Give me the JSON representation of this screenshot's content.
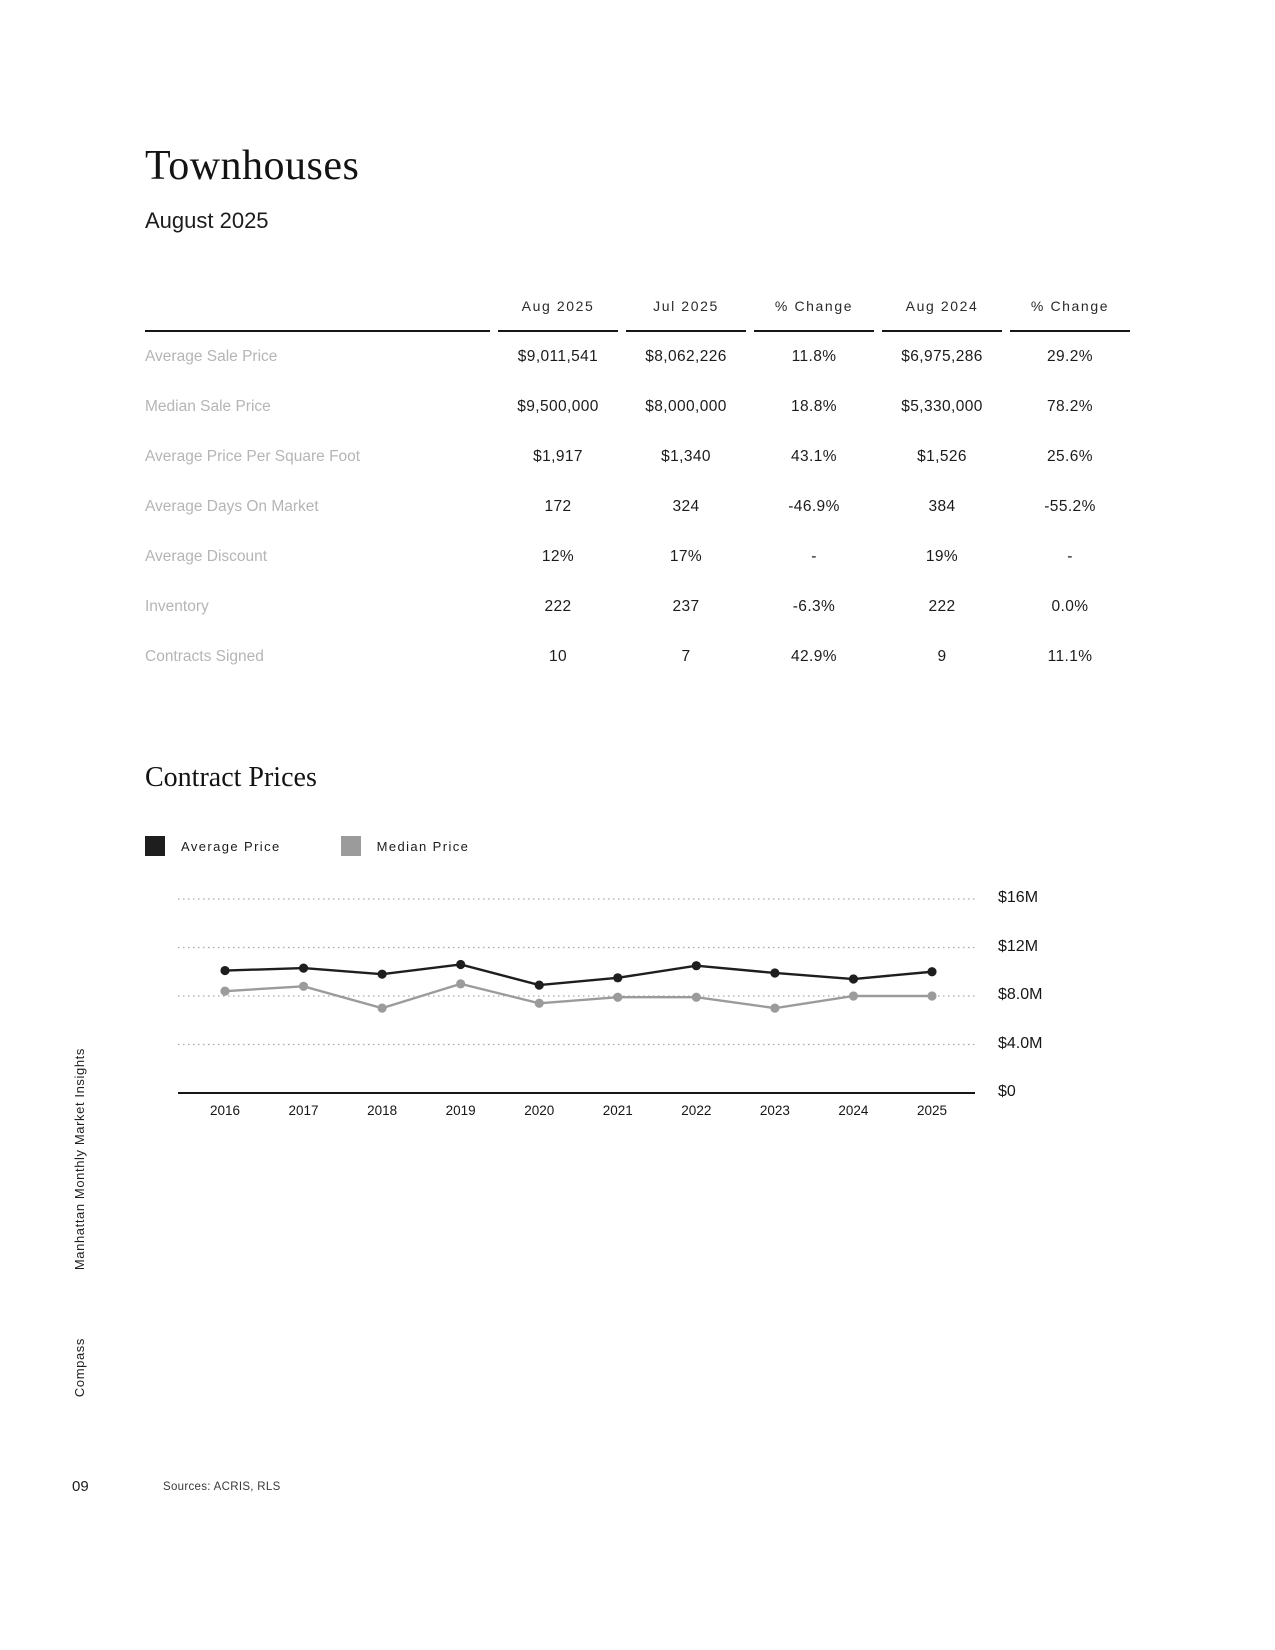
{
  "page": {
    "title": "Townhouses",
    "subtitle": "August 2025",
    "page_number": "09",
    "sources": "Sources: ACRIS, RLS",
    "sidebar_top": "Manhattan Monthly Market Insights",
    "sidebar_bottom": "Compass"
  },
  "table": {
    "columns": [
      "Aug 2025",
      "Jul 2025",
      "% Change",
      "Aug 2024",
      "% Change"
    ],
    "rows": [
      {
        "label": "Average Sale Price",
        "values": [
          "$9,011,541",
          "$8,062,226",
          "11.8%",
          "$6,975,286",
          "29.2%"
        ]
      },
      {
        "label": "Median Sale Price",
        "values": [
          "$9,500,000",
          "$8,000,000",
          "18.8%",
          "$5,330,000",
          "78.2%"
        ]
      },
      {
        "label": "Average Price Per Square Foot",
        "values": [
          "$1,917",
          "$1,340",
          "43.1%",
          "$1,526",
          "25.6%"
        ]
      },
      {
        "label": "Average Days On Market",
        "values": [
          "172",
          "324",
          "-46.9%",
          "384",
          "-55.2%"
        ]
      },
      {
        "label": "Average Discount",
        "values": [
          "12%",
          "17%",
          "-",
          "19%",
          "-"
        ]
      },
      {
        "label": "Inventory",
        "values": [
          "222",
          "237",
          "-6.3%",
          "222",
          "0.0%"
        ]
      },
      {
        "label": "Contracts Signed",
        "values": [
          "10",
          "7",
          "42.9%",
          "9",
          "11.1%"
        ]
      }
    ]
  },
  "section": {
    "title": "Contract Prices"
  },
  "chart_data": {
    "type": "line",
    "title": "Contract Prices",
    "unit": "USD millions",
    "categories": [
      "2016",
      "2017",
      "2018",
      "2019",
      "2020",
      "2021",
      "2022",
      "2023",
      "2024",
      "2025"
    ],
    "series": [
      {
        "name": "Average Price",
        "color": "#1e1e1e",
        "values": [
          10.1,
          10.3,
          9.8,
          10.6,
          8.9,
          9.5,
          10.5,
          9.9,
          9.4,
          10.0
        ]
      },
      {
        "name": "Median Price",
        "color": "#9b9b9b",
        "values": [
          8.4,
          8.8,
          7.0,
          9.0,
          7.4,
          7.9,
          7.9,
          7.0,
          8.0,
          8.0
        ]
      }
    ],
    "y_ticks": [
      {
        "value": 16,
        "label": "$16M"
      },
      {
        "value": 12,
        "label": "$12M"
      },
      {
        "value": 8,
        "label": "$8.0M"
      },
      {
        "value": 4,
        "label": "$4.0M"
      },
      {
        "value": 0,
        "label": "$0"
      }
    ],
    "ylim": [
      0,
      16.8
    ],
    "grid": "horizontal-dotted",
    "legend_position": "top-left"
  }
}
